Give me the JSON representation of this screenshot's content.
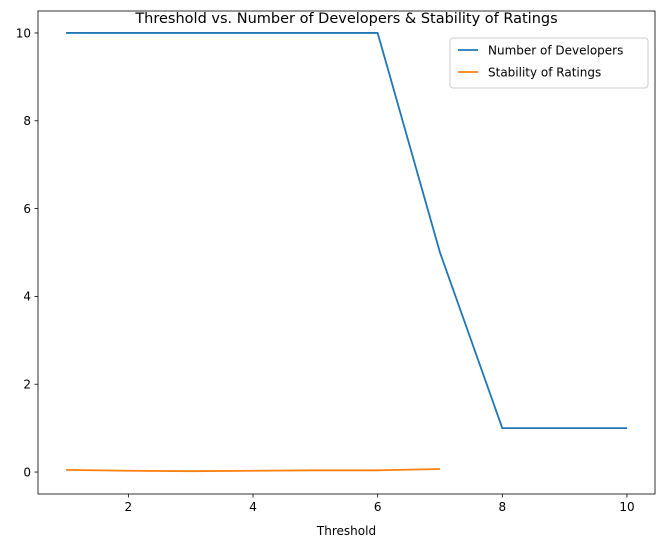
{
  "chart_data": {
    "type": "line",
    "title": "Threshold vs. Number of Developers & Stability of Ratings",
    "xlabel": "Threshold",
    "ylabel": "",
    "xlim": [
      0.55,
      10.45
    ],
    "ylim": [
      -0.5,
      10.5
    ],
    "xticks": [
      2,
      4,
      6,
      8,
      10
    ],
    "yticks": [
      0,
      2,
      4,
      6,
      8,
      10
    ],
    "grid": false,
    "legend_position": "top-right",
    "series": [
      {
        "name": "Number of Developers",
        "color": "#1f77b4",
        "x": [
          1,
          2,
          3,
          4,
          5,
          6,
          7,
          8,
          9,
          10
        ],
        "y": [
          10,
          10,
          10,
          10,
          10,
          10,
          5,
          1,
          1,
          1
        ]
      },
      {
        "name": "Stability of Ratings",
        "color": "#ff7f0e",
        "x": [
          1,
          2,
          3,
          4,
          5,
          6,
          7
        ],
        "y": [
          0.05,
          0.03,
          0.02,
          0.03,
          0.04,
          0.04,
          0.07
        ]
      }
    ]
  }
}
